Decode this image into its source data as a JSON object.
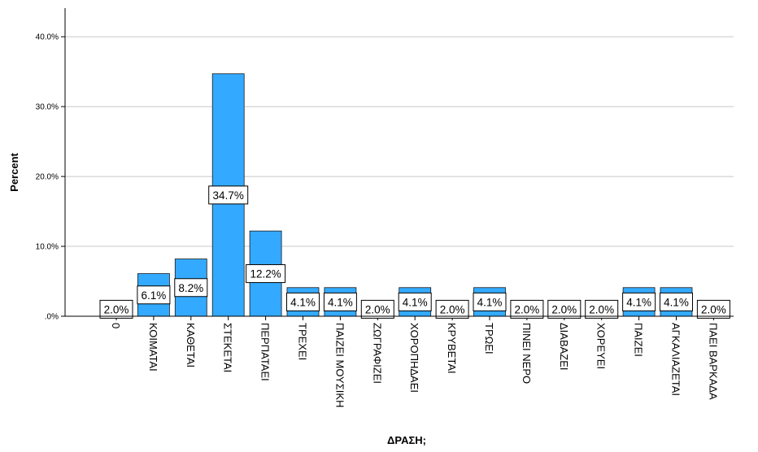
{
  "chart_data": {
    "type": "bar",
    "categories": [
      "0",
      "ΚΟΙΜΑΤΑΙ",
      "ΚΑΘΕΤΑΙ",
      "ΣΤΕΚΕΤΑΙ",
      "ΠΕΡΠΑΤΑΕΙ",
      "ΤΡΕΧΕΙ",
      "ΠΑΙΖΕΙ ΜΟΥΣΙΚΗ",
      "ΖΩΓΡΑΦΙΖΕΙ",
      "ΧΟΡΟΠΗΔΑΕΙ",
      "ΚΡΥΒΕΤΑΙ",
      "ΤΡΩΕΙ",
      "ΠΙΝΕΙ ΝΕΡΟ",
      "ΔΙΑΒΑΖΕΙ",
      "ΧΟΡΕΥΕΙ",
      "ΠΑΙΖΕΙ",
      "ΑΓΚΑΛΙΑΖΕΤΑΙ",
      "ΠΑΕΙ ΒΑΡΚΑΔΑ"
    ],
    "values": [
      2.0,
      6.1,
      8.2,
      34.7,
      12.2,
      4.1,
      4.1,
      2.0,
      4.1,
      2.0,
      4.1,
      2.0,
      2.0,
      2.0,
      4.1,
      4.1,
      2.0
    ],
    "data_labels": [
      "2.0%",
      "6.1%",
      "8.2%",
      "34.7%",
      "12.2%",
      "4.1%",
      "4.1%",
      "2.0%",
      "4.1%",
      "2.0%",
      "4.1%",
      "2.0%",
      "2.0%",
      "2.0%",
      "4.1%",
      "4.1%",
      "2.0%"
    ],
    "title": "",
    "xlabel": "ΔΡΑΣΗ;",
    "ylabel": "Percent",
    "ylim": [
      0,
      42
    ],
    "y_ticks": [
      0,
      10,
      20,
      30,
      40
    ],
    "y_tick_labels": [
      ".0%",
      "10.0%",
      "20.0%",
      "30.0%",
      "40.0%"
    ],
    "grid": "horizontal",
    "bar_color": "#33AAFF",
    "bar_edge_color": "#1A1A1A",
    "gridline_color": "#C8C8C8"
  }
}
